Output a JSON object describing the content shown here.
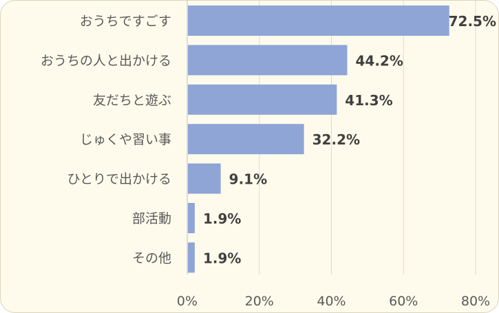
{
  "chart_data": {
    "type": "bar",
    "orientation": "horizontal",
    "categories": [
      "おうちですごす",
      "おうちの人と出かける",
      "友だちと遊ぶ",
      "じゅくや習い事",
      "ひとりで出かける",
      "部活動",
      "その他"
    ],
    "values": [
      72.5,
      44.2,
      41.3,
      32.2,
      9.1,
      1.9,
      1.9
    ],
    "data_labels": [
      "72.5%",
      "44.2%",
      "41.3%",
      "32.2%",
      "9.1%",
      "1.9%",
      "1.9%"
    ],
    "xlim": [
      0,
      80
    ],
    "xticks": [
      0,
      20,
      40,
      60,
      80
    ],
    "xtick_labels": [
      "0%",
      "20%",
      "40%",
      "60%",
      "80%"
    ],
    "grid": "vertical",
    "bar_color": "#8ea5d6",
    "background_color": "#fffbec",
    "title": "",
    "xlabel": "",
    "ylabel": ""
  }
}
